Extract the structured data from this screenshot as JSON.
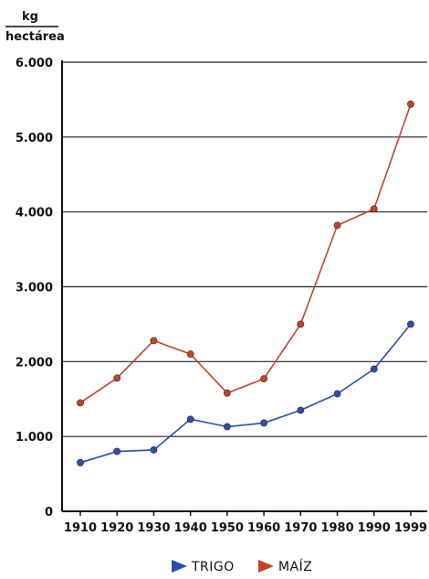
{
  "chart_data": {
    "type": "line",
    "title": "",
    "ylabel_top": "kg",
    "ylabel_bottom": "hectárea",
    "xlabel": "",
    "x": [
      "1910",
      "1920",
      "1930",
      "1940",
      "1950",
      "1960",
      "1970",
      "1980",
      "1990",
      "1999"
    ],
    "ylim": [
      0,
      6000
    ],
    "yticks": [
      0,
      1000,
      2000,
      3000,
      4000,
      5000,
      6000
    ],
    "ytick_labels": [
      "0",
      "1.000",
      "2.000",
      "3.000",
      "4.000",
      "5.000",
      "6.000"
    ],
    "grid": "horizontal",
    "legend_position": "bottom",
    "series": [
      {
        "name": "TRIGO",
        "color": "#2a4fb4",
        "values": [
          650,
          800,
          820,
          1230,
          1130,
          1180,
          1350,
          1570,
          1900,
          2500
        ]
      },
      {
        "name": "MAÍZ",
        "color": "#c0462a",
        "values": [
          1450,
          1780,
          2280,
          2100,
          1580,
          1770,
          2500,
          3820,
          4040,
          5440
        ]
      }
    ]
  }
}
